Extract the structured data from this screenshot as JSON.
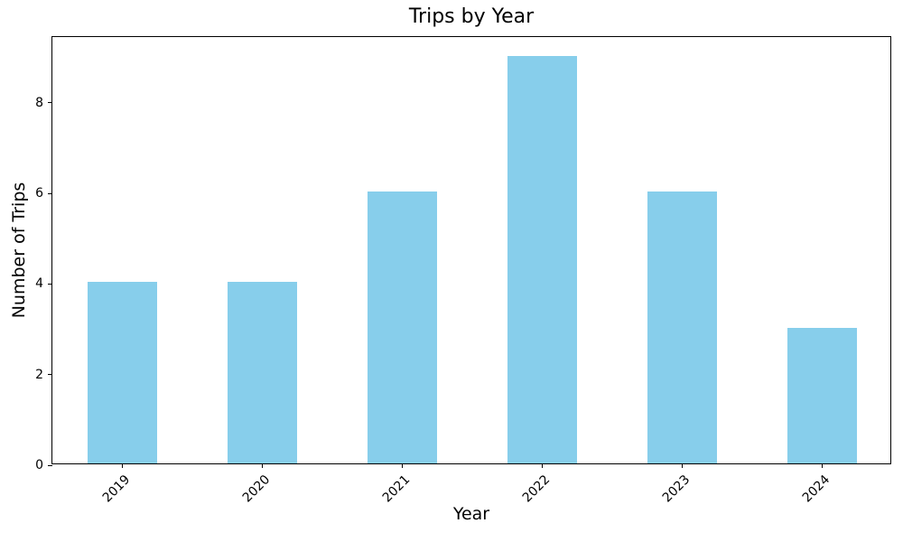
{
  "chart_data": {
    "type": "bar",
    "title": "Trips by Year",
    "xlabel": "Year",
    "ylabel": "Number of Trips",
    "categories": [
      "2019",
      "2020",
      "2021",
      "2022",
      "2023",
      "2024"
    ],
    "values": [
      4,
      4,
      6,
      9,
      6,
      3
    ],
    "yticks": [
      0,
      2,
      4,
      6,
      8
    ],
    "ylim": [
      0,
      9.45
    ],
    "bar_color": "#87CEEB",
    "bar_width_fraction": 0.5,
    "xtick_rotation_deg": 45,
    "grid": false,
    "legend": "none",
    "frame_color": "#000000",
    "background_color": "#ffffff"
  }
}
